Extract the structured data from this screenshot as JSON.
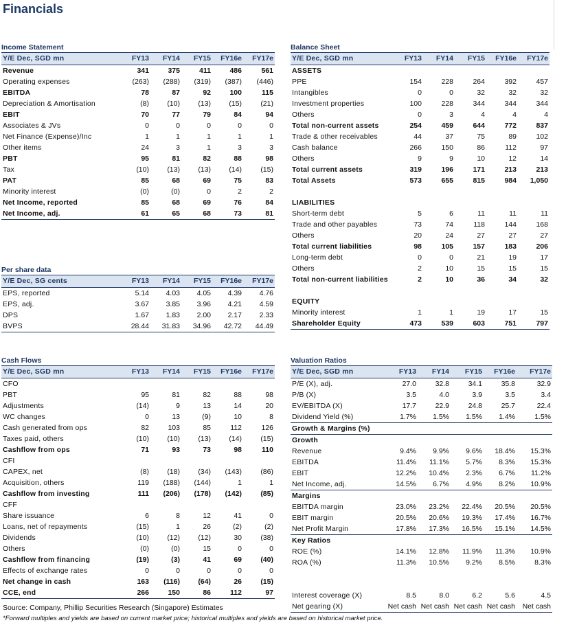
{
  "page": {
    "title": "Financials",
    "source": "Source: Company, Phillip Securities Research (Singapore) Estimates",
    "footnote": "*Forward multiples and yields are based on current market price; historical multiples and yields are based on historical market price."
  },
  "income_statement": {
    "title": "Income Statement",
    "header": [
      "Y/E Dec, SGD mn",
      "FY13",
      "FY14",
      "FY15",
      "FY16e",
      "FY17e"
    ],
    "rows": [
      {
        "label": "Revenue",
        "values": [
          "341",
          "375",
          "411",
          "486",
          "561"
        ],
        "bold": true
      },
      {
        "label": "Operating expenses",
        "values": [
          "(263)",
          "(288)",
          "(319)",
          "(387)",
          "(446)"
        ]
      },
      {
        "label": "EBITDA",
        "values": [
          "78",
          "87",
          "92",
          "100",
          "115"
        ],
        "bold": true
      },
      {
        "label": "Depreciation & Amortisation",
        "values": [
          "(8)",
          "(10)",
          "(13)",
          "(15)",
          "(21)"
        ]
      },
      {
        "label": "EBIT",
        "values": [
          "70",
          "77",
          "79",
          "84",
          "94"
        ],
        "bold": true
      },
      {
        "label": "Associates & JVs",
        "values": [
          "0",
          "0",
          "0",
          "0",
          "0"
        ]
      },
      {
        "label": "Net Finance (Expense)/Inc",
        "values": [
          "1",
          "1",
          "1",
          "1",
          "1"
        ]
      },
      {
        "label": "Other items",
        "values": [
          "24",
          "3",
          "1",
          "3",
          "3"
        ]
      },
      {
        "label": "PBT",
        "values": [
          "95",
          "81",
          "82",
          "88",
          "98"
        ],
        "bold": true
      },
      {
        "label": "Tax",
        "values": [
          "(10)",
          "(13)",
          "(13)",
          "(14)",
          "(15)"
        ]
      },
      {
        "label": "PAT",
        "values": [
          "85",
          "68",
          "69",
          "75",
          "83"
        ],
        "bold": true
      },
      {
        "label": "Minority interest",
        "values": [
          "(0)",
          "(0)",
          "0",
          "2",
          "2"
        ]
      },
      {
        "label": "Net Income, reported",
        "values": [
          "85",
          "68",
          "69",
          "76",
          "84"
        ],
        "bold": true
      },
      {
        "label": "Net Income, adj.",
        "values": [
          "61",
          "65",
          "68",
          "73",
          "81"
        ],
        "bold": true,
        "under": true
      }
    ]
  },
  "per_share": {
    "title": "Per share data",
    "header": [
      "Y/E Dec, SG cents",
      "FY13",
      "FY14",
      "FY15",
      "FY16e",
      "FY17e"
    ],
    "rows": [
      {
        "label": "EPS, reported",
        "values": [
          "5.14",
          "4.03",
          "4.05",
          "4.39",
          "4.76"
        ]
      },
      {
        "label": "EPS, adj.",
        "values": [
          "3.67",
          "3.85",
          "3.96",
          "4.21",
          "4.59"
        ]
      },
      {
        "label": "DPS",
        "values": [
          "1.67",
          "1.83",
          "2.00",
          "2.17",
          "2.33"
        ]
      },
      {
        "label": "BVPS",
        "values": [
          "28.44",
          "31.83",
          "34.96",
          "42.72",
          "44.49"
        ],
        "under": true
      }
    ]
  },
  "balance_sheet": {
    "title": "Balance Sheet",
    "header": [
      "Y/E Dec, SGD mn",
      "FY13",
      "FY14",
      "FY15",
      "FY16e",
      "FY17e"
    ],
    "rows": [
      {
        "label": "ASSETS",
        "values": [
          "",
          "",
          "",
          "",
          ""
        ],
        "bold": true
      },
      {
        "label": "PPE",
        "values": [
          "154",
          "228",
          "264",
          "392",
          "457"
        ]
      },
      {
        "label": "Intangibles",
        "values": [
          "0",
          "0",
          "32",
          "32",
          "32"
        ]
      },
      {
        "label": "Investment properties",
        "values": [
          "100",
          "228",
          "344",
          "344",
          "344"
        ]
      },
      {
        "label": "Others",
        "values": [
          "0",
          "3",
          "4",
          "4",
          "4"
        ]
      },
      {
        "label": "Total non-current assets",
        "values": [
          "254",
          "459",
          "644",
          "772",
          "837"
        ],
        "bold": true
      },
      {
        "label": "Trade & other receivables",
        "values": [
          "44",
          "37",
          "75",
          "89",
          "102"
        ]
      },
      {
        "label": "Cash balance",
        "values": [
          "266",
          "150",
          "86",
          "112",
          "97"
        ]
      },
      {
        "label": "Others",
        "values": [
          "9",
          "9",
          "10",
          "12",
          "14"
        ]
      },
      {
        "label": "Total current assets",
        "values": [
          "319",
          "196",
          "171",
          "213",
          "213"
        ],
        "bold": true
      },
      {
        "label": "Total Assets",
        "values": [
          "573",
          "655",
          "815",
          "984",
          "1,050"
        ],
        "bold": true
      },
      {
        "label": "",
        "values": [
          "",
          "",
          "",
          "",
          ""
        ]
      },
      {
        "label": "LIABILITIES",
        "values": [
          "",
          "",
          "",
          "",
          ""
        ],
        "bold": true
      },
      {
        "label": "Short-term debt",
        "values": [
          "5",
          "6",
          "11",
          "11",
          "11"
        ]
      },
      {
        "label": "Trade and other payables",
        "values": [
          "73",
          "74",
          "118",
          "144",
          "168"
        ]
      },
      {
        "label": "Others",
        "values": [
          "20",
          "24",
          "27",
          "27",
          "27"
        ]
      },
      {
        "label": "Total current liabilities",
        "values": [
          "98",
          "105",
          "157",
          "183",
          "206"
        ],
        "bold": true
      },
      {
        "label": "Long-term debt",
        "values": [
          "0",
          "0",
          "21",
          "19",
          "17"
        ]
      },
      {
        "label": "Others",
        "values": [
          "2",
          "10",
          "15",
          "15",
          "15"
        ]
      },
      {
        "label": "Total non-current liabilities",
        "values": [
          "2",
          "10",
          "36",
          "34",
          "32"
        ],
        "bold": true
      },
      {
        "label": "",
        "values": [
          "",
          "",
          "",
          "",
          ""
        ]
      },
      {
        "label": "EQUITY",
        "values": [
          "",
          "",
          "",
          "",
          ""
        ],
        "bold": true
      },
      {
        "label": "Minority interest",
        "values": [
          "1",
          "1",
          "19",
          "17",
          "15"
        ]
      },
      {
        "label": "Shareholder Equity",
        "values": [
          "473",
          "539",
          "603",
          "751",
          "797"
        ],
        "bold": true,
        "under": true
      }
    ]
  },
  "cash_flows": {
    "title": "Cash Flows",
    "header": [
      "Y/E Dec, SGD mn",
      "FY13",
      "FY14",
      "FY15",
      "FY16e",
      "FY17e"
    ],
    "rows": [
      {
        "label": "CFO",
        "values": [
          "",
          "",
          "",
          "",
          ""
        ]
      },
      {
        "label": "PBT",
        "values": [
          "95",
          "81",
          "82",
          "88",
          "98"
        ]
      },
      {
        "label": "Adjustments",
        "values": [
          "(14)",
          "9",
          "13",
          "14",
          "20"
        ]
      },
      {
        "label": "WC changes",
        "values": [
          "0",
          "13",
          "(9)",
          "10",
          "8"
        ]
      },
      {
        "label": "Cash generated from ops",
        "values": [
          "82",
          "103",
          "85",
          "112",
          "126"
        ]
      },
      {
        "label": "Taxes paid, others",
        "values": [
          "(10)",
          "(10)",
          "(13)",
          "(14)",
          "(15)"
        ]
      },
      {
        "label": "Cashflow from ops",
        "values": [
          "71",
          "93",
          "73",
          "98",
          "110"
        ],
        "bold": true
      },
      {
        "label": "CFI",
        "values": [
          "",
          "",
          "",
          "",
          ""
        ]
      },
      {
        "label": "CAPEX, net",
        "values": [
          "(8)",
          "(18)",
          "(34)",
          "(143)",
          "(86)"
        ]
      },
      {
        "label": "Acquisition, others",
        "values": [
          "119",
          "(188)",
          "(144)",
          "1",
          "1"
        ]
      },
      {
        "label": "Cashflow from investing",
        "values": [
          "111",
          "(206)",
          "(178)",
          "(142)",
          "(85)"
        ],
        "bold": true
      },
      {
        "label": "CFF",
        "values": [
          "",
          "",
          "",
          "",
          ""
        ]
      },
      {
        "label": "Share issuance",
        "values": [
          "6",
          "8",
          "12",
          "41",
          "0"
        ]
      },
      {
        "label": "Loans, net of repayments",
        "values": [
          "(15)",
          "1",
          "26",
          "(2)",
          "(2)"
        ]
      },
      {
        "label": "Dividends",
        "values": [
          "(10)",
          "(12)",
          "(12)",
          "30",
          "(38)"
        ]
      },
      {
        "label": "Others",
        "values": [
          "(0)",
          "(0)",
          "15",
          "0",
          "0"
        ]
      },
      {
        "label": "Cashflow from financing",
        "values": [
          "(19)",
          "(3)",
          "41",
          "69",
          "(40)"
        ],
        "bold": true
      },
      {
        "label": "Effects of exchange rates",
        "values": [
          "0",
          "0",
          "0",
          "0",
          "0"
        ]
      },
      {
        "label": "Net change in cash",
        "values": [
          "163",
          "(116)",
          "(64)",
          "26",
          "(15)"
        ],
        "bold": true
      },
      {
        "label": "CCE, end",
        "values": [
          "266",
          "150",
          "86",
          "112",
          "97"
        ],
        "bold": true,
        "under": true
      }
    ]
  },
  "valuation": {
    "title": "Valuation Ratios",
    "header": [
      "Y/E Dec, SGD mn",
      "FY13",
      "FY14",
      "FY15",
      "FY16e",
      "FY17e"
    ],
    "rows": [
      {
        "label": "P/E (X), adj.",
        "values": [
          "27.0",
          "32.8",
          "34.1",
          "35.8",
          "32.9"
        ]
      },
      {
        "label": "P/B (X)",
        "values": [
          "3.5",
          "4.0",
          "3.9",
          "3.5",
          "3.4"
        ]
      },
      {
        "label": "EV/EBITDA (X)",
        "values": [
          "17.7",
          "22.9",
          "24.8",
          "25.7",
          "22.4"
        ]
      },
      {
        "label": "Dividend Yield (%)",
        "values": [
          "1.7%",
          "1.5%",
          "1.5%",
          "1.4%",
          "1.5%"
        ]
      },
      {
        "label": "Growth & Margins (%)",
        "values": [
          "",
          "",
          "",
          "",
          ""
        ],
        "bold": true,
        "topline": true
      },
      {
        "label": "Growth",
        "values": [
          "",
          "",
          "",
          "",
          ""
        ],
        "bold": true,
        "topline": true
      },
      {
        "label": "Revenue",
        "values": [
          "9.4%",
          "9.9%",
          "9.6%",
          "18.4%",
          "15.3%"
        ]
      },
      {
        "label": "EBITDA",
        "values": [
          "11.4%",
          "11.1%",
          "5.7%",
          "8.3%",
          "15.3%"
        ]
      },
      {
        "label": "EBIT",
        "values": [
          "12.2%",
          "10.4%",
          "2.3%",
          "6.7%",
          "11.2%"
        ]
      },
      {
        "label": "Net Income, adj.",
        "values": [
          "14.5%",
          "6.7%",
          "4.9%",
          "8.2%",
          "10.9%"
        ]
      },
      {
        "label": "Margins",
        "values": [
          "",
          "",
          "",
          "",
          ""
        ],
        "bold": true,
        "topline": true
      },
      {
        "label": "EBITDA margin",
        "values": [
          "23.0%",
          "23.2%",
          "22.4%",
          "20.5%",
          "20.5%"
        ]
      },
      {
        "label": "EBIT margin",
        "values": [
          "20.5%",
          "20.6%",
          "19.3%",
          "17.4%",
          "16.7%"
        ]
      },
      {
        "label": "Net Profit Margin",
        "values": [
          "17.8%",
          "17.3%",
          "16.5%",
          "15.1%",
          "14.5%"
        ]
      },
      {
        "label": "Key Ratios",
        "values": [
          "",
          "",
          "",
          "",
          ""
        ],
        "bold": true,
        "topline": true
      },
      {
        "label": "ROE (%)",
        "values": [
          "14.1%",
          "12.8%",
          "11.9%",
          "11.3%",
          "10.9%"
        ]
      },
      {
        "label": "ROA (%)",
        "values": [
          "11.3%",
          "10.5%",
          "9.2%",
          "8.5%",
          "8.3%"
        ]
      },
      {
        "label": "",
        "values": [
          "",
          "",
          "",
          "",
          ""
        ]
      },
      {
        "label": "",
        "values": [
          "",
          "",
          "",
          "",
          ""
        ]
      },
      {
        "label": "Interest coverage (X)",
        "values": [
          "8.5",
          "8.0",
          "6.2",
          "5.6",
          "4.5"
        ]
      },
      {
        "label": "Net gearing (X)",
        "values": [
          "Net cash",
          "Net cash",
          "Net cash",
          "Net cash",
          "Net cash"
        ],
        "under": true
      }
    ]
  }
}
